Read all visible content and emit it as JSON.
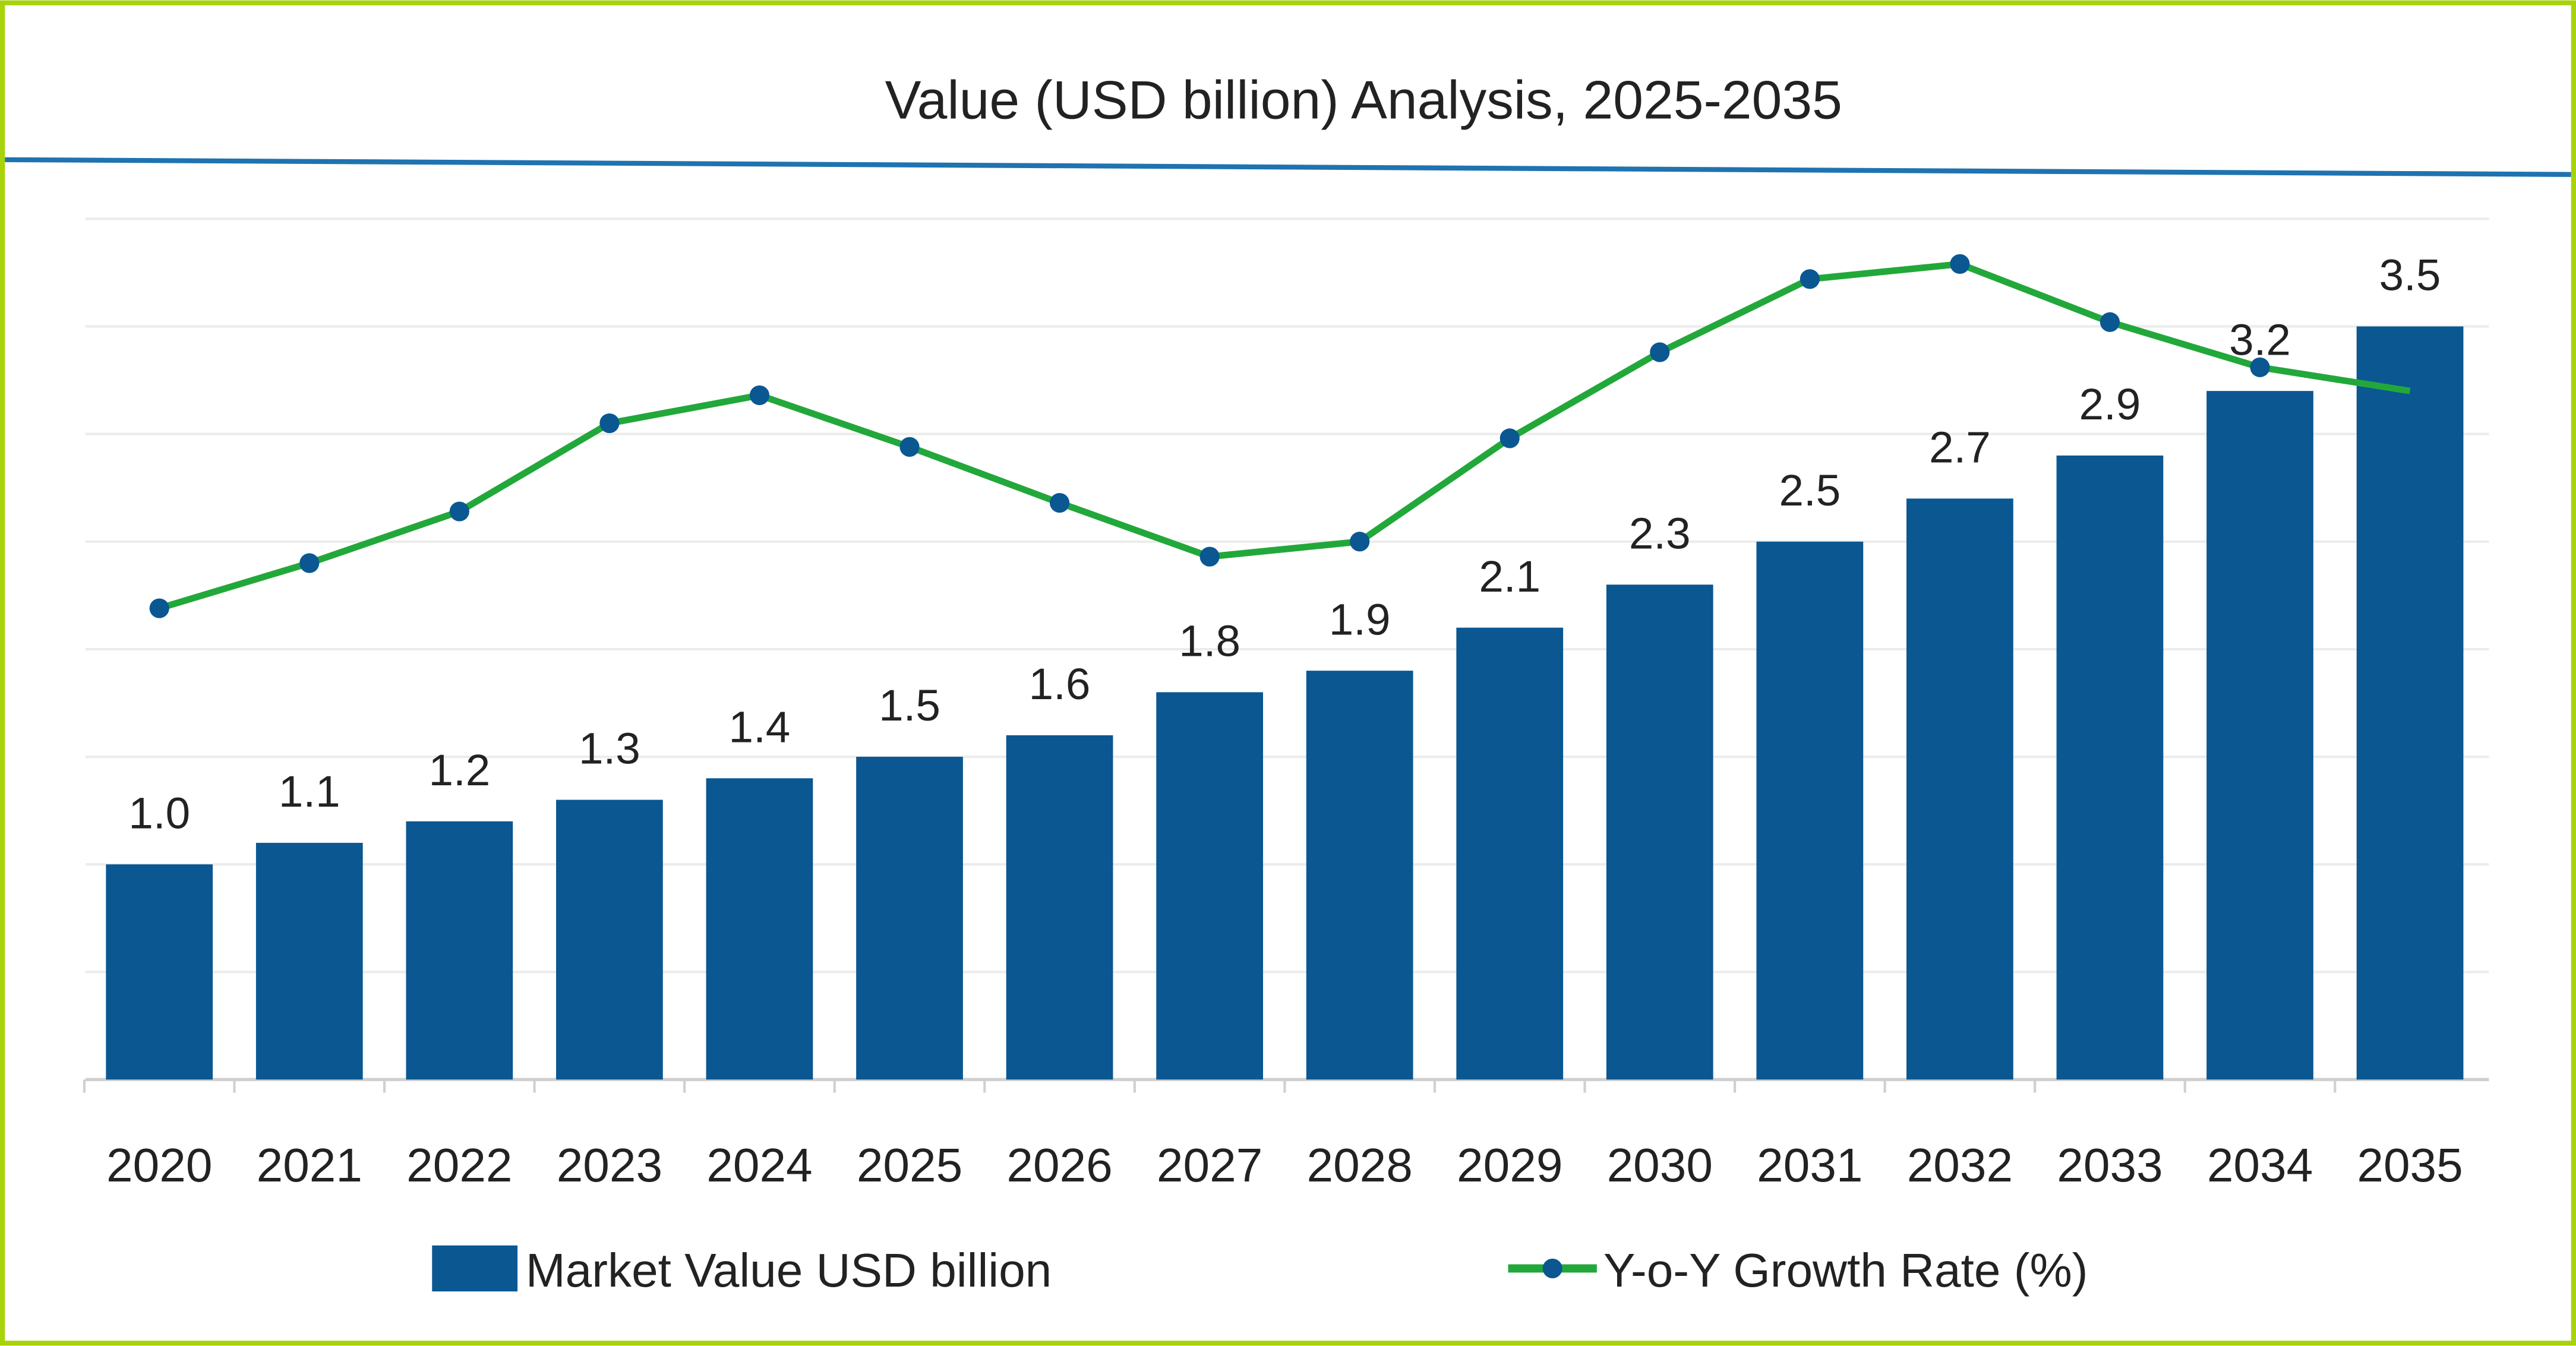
{
  "chart_data": {
    "type": "bar",
    "title": "Value (USD billion) Analysis, 2025-2035",
    "xlabel": "",
    "ylabel": "",
    "categories": [
      "2020",
      "2021",
      "2022",
      "2023",
      "2024",
      "2025",
      "2026",
      "2027",
      "2028",
      "2029",
      "2030",
      "2031",
      "2032",
      "2033",
      "2034",
      "2035"
    ],
    "series": [
      {
        "name": "Market Value USD billion",
        "type": "bar",
        "color": "#0a5792",
        "values": [
          1.0,
          1.1,
          1.2,
          1.3,
          1.4,
          1.5,
          1.6,
          1.8,
          1.9,
          2.1,
          2.3,
          2.5,
          2.7,
          2.9,
          3.2,
          3.5
        ],
        "labels": [
          "1.0",
          "1.1",
          "1.2",
          "1.3",
          "1.4",
          "1.5",
          "1.6",
          "1.8",
          "1.9",
          "2.1",
          "2.3",
          "2.5",
          "2.7",
          "2.9",
          "3.2",
          "3.5"
        ]
      },
      {
        "name": "Y-o-Y Growth Rate (%)",
        "type": "line",
        "color": "#22a83a",
        "marker_color": "#0a5792",
        "values": [
          2.19,
          2.4,
          2.64,
          3.05,
          3.18,
          2.94,
          2.68,
          2.43,
          2.5,
          2.98,
          3.38,
          3.72,
          3.79,
          3.52,
          3.31,
          3.2
        ]
      }
    ],
    "ylim": [
      0,
      4
    ],
    "y2lim": [
      0,
      4
    ],
    "grid": true,
    "legend": "bottom-center",
    "frame_color": "#a8d20a",
    "title_rule_color": "#1f73b0"
  }
}
